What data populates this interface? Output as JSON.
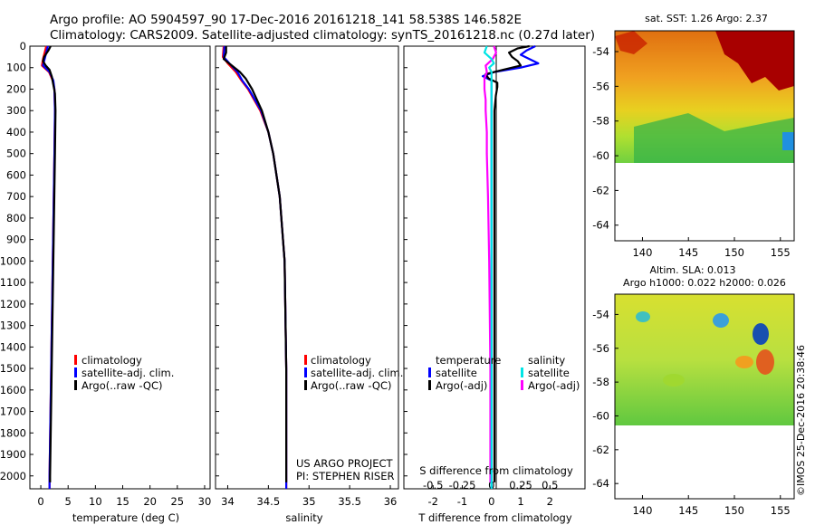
{
  "header": {
    "line1": "Argo profile: AO 5904597_90 17-Dec-2016 20161218_141 58.538S 146.582E",
    "line2": "Climatology: CARS2009. Satellite-adjusted climatology: synTS_20161218.nc (0.27d later)"
  },
  "colors": {
    "climatology": "#ff0000",
    "satellite_adj": "#0000ff",
    "argo": "#000000",
    "sat_temp_diff": "#0000ff",
    "argo_temp_diff": "#000000",
    "sat_sal_diff": "#00e5e5",
    "argo_sal_diff": "#ff00ff"
  },
  "legends": {
    "temperature_panel": [
      "climatology",
      "satellite-adj. clim.",
      "Argo(..raw -QC)"
    ],
    "salinity_panel": [
      "climatology",
      "satellite-adj. clim.",
      "Argo(..raw -QC)"
    ],
    "difference_panel": {
      "temp_heading": "temperature",
      "sal_heading": "salinity",
      "temp_items": [
        "satellite",
        "Argo(-adj)"
      ],
      "sal_items": [
        "satellite",
        "Argo(-adj)"
      ]
    }
  },
  "annotations": {
    "project": "US ARGO PROJECT",
    "pi": "PI: STEPHEN RISER",
    "imos": "©IMOS 25-Dec-2016 20:38:46"
  },
  "maps": {
    "sst_title": "sat. SST: 1.26 Argo: 2.37",
    "sla_title1": "Altim. SLA: 0.013",
    "sla_title2": "Argo h1000: 0.022 h2000: 0.026",
    "x_ticks": [
      "140",
      "145",
      "150",
      "155"
    ],
    "y_ticks": [
      "-54",
      "-56",
      "-58",
      "-60",
      "-62",
      "-64"
    ]
  },
  "chart_data": [
    {
      "type": "line",
      "title": "",
      "xlabel": "temperature (deg C)",
      "ylabel": "",
      "xlim": [
        -2,
        31
      ],
      "ylim": [
        2060,
        0
      ],
      "x_ticks": [
        "0",
        "5",
        "10",
        "15",
        "20",
        "25",
        "30"
      ],
      "y_ticks": [
        "0",
        "100",
        "200",
        "300",
        "400",
        "500",
        "600",
        "700",
        "800",
        "900",
        "1000",
        "1100",
        "1200",
        "1300",
        "1400",
        "1500",
        "1600",
        "1700",
        "1800",
        "1900",
        "2000"
      ],
      "series": [
        {
          "name": "climatology",
          "depth": [
            0,
            60,
            90,
            120,
            160,
            200,
            300,
            500,
            1000,
            1500,
            2000,
            2060
          ],
          "values": [
            1.0,
            0.4,
            0.2,
            1.5,
            2.2,
            2.5,
            2.6,
            2.5,
            2.2,
            1.9,
            1.6,
            1.6
          ]
        },
        {
          "name": "satellite-adj. clim.",
          "depth": [
            0,
            60,
            90,
            120,
            160,
            200,
            300,
            500,
            1000,
            1500,
            2000,
            2060
          ],
          "values": [
            1.3,
            0.7,
            0.4,
            1.6,
            2.3,
            2.5,
            2.6,
            2.5,
            2.2,
            1.9,
            1.6,
            1.6
          ]
        },
        {
          "name": "Argo(..raw -QC)",
          "depth": [
            0,
            20,
            50,
            70,
            90,
            110,
            140,
            180,
            220,
            300,
            500,
            1000,
            1500,
            2000,
            2030
          ],
          "values": [
            1.8,
            1.4,
            0.6,
            0.4,
            0.9,
            1.6,
            2.0,
            2.3,
            2.6,
            2.7,
            2.6,
            2.3,
            2.0,
            1.7,
            1.7
          ]
        }
      ]
    },
    {
      "type": "line",
      "title": "",
      "xlabel": "salinity",
      "ylabel": "",
      "xlim": [
        33.85,
        36.1
      ],
      "ylim": [
        2060,
        0
      ],
      "x_ticks": [
        "34",
        "34.5",
        "35",
        "35.5",
        "36"
      ],
      "series": [
        {
          "name": "climatology",
          "depth": [
            0,
            50,
            80,
            120,
            160,
            200,
            300,
            400,
            500,
            700,
            1000,
            1500,
            2000,
            2060
          ],
          "values": [
            33.95,
            33.94,
            34.0,
            34.1,
            34.17,
            34.25,
            34.4,
            34.5,
            34.56,
            34.64,
            34.7,
            34.72,
            34.72,
            34.72
          ]
        },
        {
          "name": "satellite-adj. clim.",
          "depth": [
            0,
            50,
            80,
            120,
            160,
            200,
            300,
            400,
            500,
            700,
            1000,
            1500,
            2000,
            2060
          ],
          "values": [
            33.96,
            33.95,
            34.02,
            34.12,
            34.18,
            34.26,
            34.41,
            34.5,
            34.56,
            34.64,
            34.7,
            34.72,
            34.72,
            34.72
          ]
        },
        {
          "name": "Argo(..raw -QC)",
          "depth": [
            0,
            30,
            60,
            90,
            120,
            150,
            200,
            250,
            300,
            400,
            500,
            700,
            1000,
            1500,
            2000,
            2030
          ],
          "values": [
            33.98,
            33.98,
            33.95,
            34.05,
            34.15,
            34.22,
            34.3,
            34.36,
            34.42,
            34.5,
            34.56,
            34.64,
            34.7,
            34.72,
            34.72,
            34.72
          ]
        }
      ]
    },
    {
      "type": "line",
      "title": "",
      "xlabel": "T difference from climatology",
      "x2label": "S difference from climatology",
      "xlim": [
        -3,
        3.2
      ],
      "x2lim": [
        -0.75,
        0.8
      ],
      "ylim": [
        2060,
        0
      ],
      "x_ticks": [
        "-2",
        "-1",
        "0",
        "1",
        "2"
      ],
      "x2_ticks": [
        "-0.5",
        "-0.25",
        "0",
        "0.25",
        "0.5"
      ],
      "series": [
        {
          "name": "temperature satellite",
          "axis": "T",
          "depth": [
            0,
            20,
            40,
            60,
            80,
            100,
            120,
            140,
            160,
            180,
            200,
            250,
            300,
            500,
            1000,
            1500,
            2000,
            2060
          ],
          "values": [
            1.5,
            1.2,
            1.0,
            1.3,
            1.6,
            1.0,
            0.1,
            -0.3,
            0.0,
            0.0,
            0.0,
            0.0,
            0.0,
            0.0,
            0.0,
            0.0,
            0.0,
            0.0
          ]
        },
        {
          "name": "temperature Argo(-adj)",
          "axis": "T",
          "depth": [
            0,
            10,
            30,
            50,
            70,
            90,
            110,
            130,
            150,
            170,
            190,
            230,
            300,
            500,
            1000,
            1500,
            2000,
            2030
          ],
          "values": [
            1.3,
            0.9,
            0.6,
            0.7,
            0.9,
            1.0,
            0.4,
            -0.2,
            -0.1,
            0.2,
            0.2,
            0.15,
            0.1,
            0.1,
            0.1,
            0.1,
            0.1,
            0.1
          ]
        },
        {
          "name": "salinity satellite",
          "axis": "S",
          "depth": [
            0,
            30,
            60,
            80,
            100,
            120,
            150,
            200,
            300,
            500,
            1000,
            1500,
            2000,
            2060
          ],
          "values": [
            -0.04,
            -0.06,
            0.0,
            0.02,
            -0.02,
            0.0,
            0.0,
            0.0,
            0.0,
            0.0,
            0.0,
            0.0,
            0.0,
            0.0
          ]
        },
        {
          "name": "salinity Argo(-adj)",
          "axis": "S",
          "depth": [
            0,
            30,
            60,
            90,
            120,
            150,
            200,
            250,
            300,
            400,
            500,
            700,
            1000,
            1500,
            2000,
            2030
          ],
          "values": [
            0.02,
            0.04,
            0.01,
            -0.05,
            -0.04,
            -0.06,
            -0.06,
            -0.05,
            -0.05,
            -0.04,
            -0.04,
            -0.03,
            -0.02,
            -0.01,
            -0.01,
            -0.01
          ]
        }
      ]
    }
  ]
}
